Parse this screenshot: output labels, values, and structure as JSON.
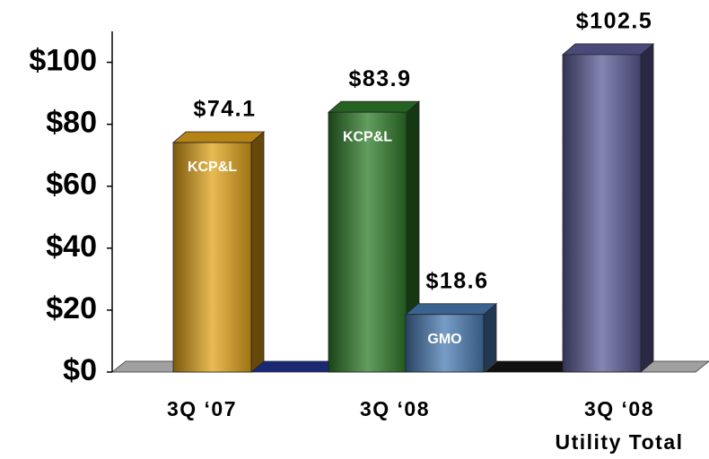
{
  "chart_data": {
    "type": "bar3d",
    "ylim": [
      0,
      110
    ],
    "yticks": [
      {
        "value": 0,
        "label": "$0"
      },
      {
        "value": 20,
        "label": "$20"
      },
      {
        "value": 40,
        "label": "$40"
      },
      {
        "value": 60,
        "label": "$60"
      },
      {
        "value": 80,
        "label": "$80"
      },
      {
        "value": 100,
        "label": "$100"
      }
    ],
    "categories": [
      {
        "label": [
          "3Q ‘07"
        ],
        "bars": [
          {
            "name": "KCP&L",
            "value": 74.1,
            "value_label": "$74.1",
            "color": "#e2a41a"
          }
        ]
      },
      {
        "label": [
          "3Q ‘08"
        ],
        "bars": [
          {
            "name": "KCP&L",
            "value": 83.9,
            "value_label": "$83.9",
            "color": "#2f7c2a"
          },
          {
            "name": "GMO",
            "value": 18.6,
            "value_label": "$18.6",
            "color": "#4a7cb4"
          }
        ]
      },
      {
        "label": [
          "3Q ‘08",
          "Utility Total"
        ],
        "bars": [
          {
            "value": 102.5,
            "value_label": "$102.5",
            "color": "#5c5c98"
          }
        ]
      }
    ]
  }
}
